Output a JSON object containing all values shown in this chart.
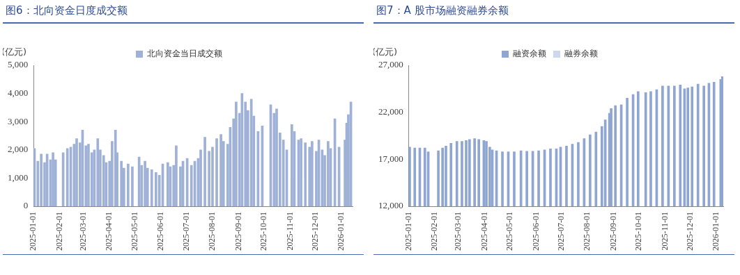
{
  "chart_data": [
    {
      "type": "bar",
      "title": "图6：北向资金日度成交额",
      "ylabel": "(亿元)",
      "legend": "top",
      "x": [
        "2025-01-02",
        "2025-01-06",
        "2025-01-10",
        "2025-01-14",
        "2025-01-17",
        "2025-01-21",
        "2025-01-24",
        "2025-01-27",
        "2025-02-05",
        "2025-02-10",
        "2025-02-14",
        "2025-02-18",
        "2025-02-21",
        "2025-02-25",
        "2025-02-28",
        "2025-03-04",
        "2025-03-07",
        "2025-03-11",
        "2025-03-14",
        "2025-03-18",
        "2025-03-21",
        "2025-03-25",
        "2025-03-28",
        "2025-04-01",
        "2025-04-04",
        "2025-04-08",
        "2025-04-10",
        "2025-04-15",
        "2025-04-18",
        "2025-04-23",
        "2025-04-28",
        "2025-05-06",
        "2025-05-09",
        "2025-05-13",
        "2025-05-16",
        "2025-05-21",
        "2025-05-26",
        "2025-05-30",
        "2025-06-03",
        "2025-06-09",
        "2025-06-12",
        "2025-06-16",
        "2025-06-19",
        "2025-06-24",
        "2025-06-27",
        "2025-07-02",
        "2025-07-07",
        "2025-07-11",
        "2025-07-15",
        "2025-07-18",
        "2025-07-23",
        "2025-07-28",
        "2025-08-01",
        "2025-08-06",
        "2025-08-11",
        "2025-08-14",
        "2025-08-19",
        "2025-08-22",
        "2025-08-26",
        "2025-08-29",
        "2025-09-02",
        "2025-09-05",
        "2025-09-09",
        "2025-09-12",
        "2025-09-16",
        "2025-09-19",
        "2025-09-24",
        "2025-09-29",
        "2025-10-09",
        "2025-10-13",
        "2025-10-16",
        "2025-10-20",
        "2025-10-24",
        "2025-10-28",
        "2025-11-03",
        "2025-11-06",
        "2025-11-11",
        "2025-11-14",
        "2025-11-19",
        "2025-11-24",
        "2025-11-27",
        "2025-12-02",
        "2025-12-05",
        "2025-12-09",
        "2025-12-12",
        "2025-12-16",
        "2025-12-19",
        "2025-12-24",
        "2025-12-29",
        "2026-01-05",
        "2026-01-07",
        "2026-01-09",
        "2026-01-12"
      ],
      "series": [
        {
          "name": "北向资金当日成交额",
          "color": "#9fb1d6",
          "values": [
            2050,
            1600,
            1850,
            1550,
            1850,
            1650,
            1900,
            1650,
            1900,
            2050,
            2100,
            2200,
            2400,
            2250,
            2700,
            2150,
            2200,
            1900,
            2000,
            2400,
            2000,
            1800,
            1550,
            1600,
            2300,
            2700,
            1900,
            1600,
            1350,
            1500,
            1400,
            1750,
            1450,
            1600,
            1350,
            1300,
            1200,
            1100,
            1500,
            1550,
            1400,
            1450,
            2150,
            1400,
            1600,
            1700,
            1450,
            1600,
            1700,
            2000,
            2450,
            1950,
            2100,
            2400,
            2550,
            2300,
            2200,
            2800,
            3100,
            3700,
            3300,
            4000,
            3700,
            3400,
            3800,
            3200,
            2650,
            2850,
            3600,
            3300,
            3450,
            2600,
            2350,
            2000,
            2900,
            2650,
            2350,
            2400,
            2250,
            2100,
            2300,
            1950,
            2350,
            2000,
            1800,
            2300,
            2050,
            3100,
            2100,
            2350,
            2950,
            3250,
            3700
          ]
        }
      ],
      "xlim": [
        "2025-01-01",
        "2026-01-14"
      ],
      "xticks": [
        "2025-01-01",
        "2025-02-01",
        "2025-03-01",
        "2025-04-01",
        "2025-05-01",
        "2025-06-01",
        "2025-07-01",
        "2025-08-01",
        "2025-09-01",
        "2025-10-01",
        "2025-11-01",
        "2025-12-01",
        "2026-01-01"
      ],
      "ylim": [
        0,
        5000
      ],
      "yticks": [
        0,
        {
          "value": 1000,
          "label": "1,000"
        },
        {
          "value": 2000,
          "label": "2,000"
        },
        {
          "value": 3000,
          "label": "3,000"
        },
        {
          "value": 4000,
          "label": "4,000"
        },
        {
          "value": 5000,
          "label": "5,000"
        }
      ]
    },
    {
      "type": "bar",
      "title": "图7：A 股市场融资融券余额",
      "ylabel": "(亿元)",
      "legend": "top",
      "stacked": true,
      "x": [
        "2025-01-02",
        "2025-01-08",
        "2025-01-14",
        "2025-01-20",
        "2025-01-24",
        "2025-02-05",
        "2025-02-10",
        "2025-02-14",
        "2025-02-20",
        "2025-02-27",
        "2025-03-05",
        "2025-03-10",
        "2025-03-14",
        "2025-03-20",
        "2025-03-25",
        "2025-03-31",
        "2025-04-03",
        "2025-04-07",
        "2025-04-10",
        "2025-04-15",
        "2025-04-22",
        "2025-04-29",
        "2025-05-06",
        "2025-05-14",
        "2025-05-21",
        "2025-05-28",
        "2025-06-04",
        "2025-06-11",
        "2025-06-18",
        "2025-06-25",
        "2025-06-30",
        "2025-07-07",
        "2025-07-14",
        "2025-07-21",
        "2025-07-28",
        "2025-08-04",
        "2025-08-11",
        "2025-08-18",
        "2025-08-22",
        "2025-08-27",
        "2025-08-29",
        "2025-09-03",
        "2025-09-10",
        "2025-09-17",
        "2025-09-24",
        "2025-09-30",
        "2025-10-09",
        "2025-10-15",
        "2025-10-22",
        "2025-10-29",
        "2025-11-05",
        "2025-11-12",
        "2025-11-19",
        "2025-11-24",
        "2025-11-28",
        "2025-12-03",
        "2025-12-10",
        "2025-12-17",
        "2025-12-23",
        "2025-12-29",
        "2026-01-06",
        "2026-01-08"
      ],
      "series": [
        {
          "name": "融资余额",
          "color": "#8fa5d2",
          "values": [
            18300,
            18200,
            18200,
            18200,
            17800,
            17900,
            18200,
            18400,
            18700,
            18900,
            18900,
            19000,
            19100,
            19200,
            19100,
            19000,
            18900,
            18300,
            18000,
            17900,
            17800,
            17800,
            17800,
            17900,
            17850,
            17850,
            17900,
            18000,
            18100,
            18100,
            18300,
            18400,
            18600,
            18800,
            19200,
            19600,
            19900,
            20500,
            21200,
            21900,
            22400,
            22700,
            22800,
            23500,
            23900,
            24200,
            24100,
            24200,
            24400,
            24800,
            24800,
            24800,
            24900,
            24500,
            24600,
            24700,
            25000,
            24800,
            25100,
            25200,
            25500,
            25800
          ]
        },
        {
          "name": "融券余额",
          "color": "#cdd8ee",
          "values": [
            null,
            null,
            null,
            null,
            null,
            null,
            null,
            null,
            null,
            null,
            null,
            null,
            null,
            null,
            null,
            null,
            null,
            null,
            null,
            null,
            null,
            null,
            null,
            null,
            null,
            null,
            null,
            null,
            null,
            null,
            null,
            null,
            null,
            null,
            null,
            null,
            null,
            null,
            null,
            null,
            null,
            null,
            null,
            null,
            null,
            null,
            null,
            null,
            null,
            null,
            null,
            null,
            null,
            null,
            null,
            null,
            null,
            null,
            null,
            null,
            null,
            null
          ]
        }
      ],
      "xlim": [
        "2025-01-01",
        "2026-01-09"
      ],
      "xticks": [
        "2025-01-01",
        "2025-02-01",
        "2025-03-01",
        "2025-04-01",
        "2025-05-01",
        "2025-06-01",
        "2025-07-01",
        "2025-08-01",
        "2025-09-01",
        "2025-10-01",
        "2025-11-01",
        "2025-12-01",
        "2026-01-01"
      ],
      "ylim": [
        12000,
        27000
      ],
      "yticks": [
        {
          "value": 12000,
          "label": "12,000"
        },
        {
          "value": 17000,
          "label": "17,000"
        },
        {
          "value": 22000,
          "label": "22,000"
        },
        {
          "value": 27000,
          "label": "27,000"
        }
      ]
    }
  ]
}
